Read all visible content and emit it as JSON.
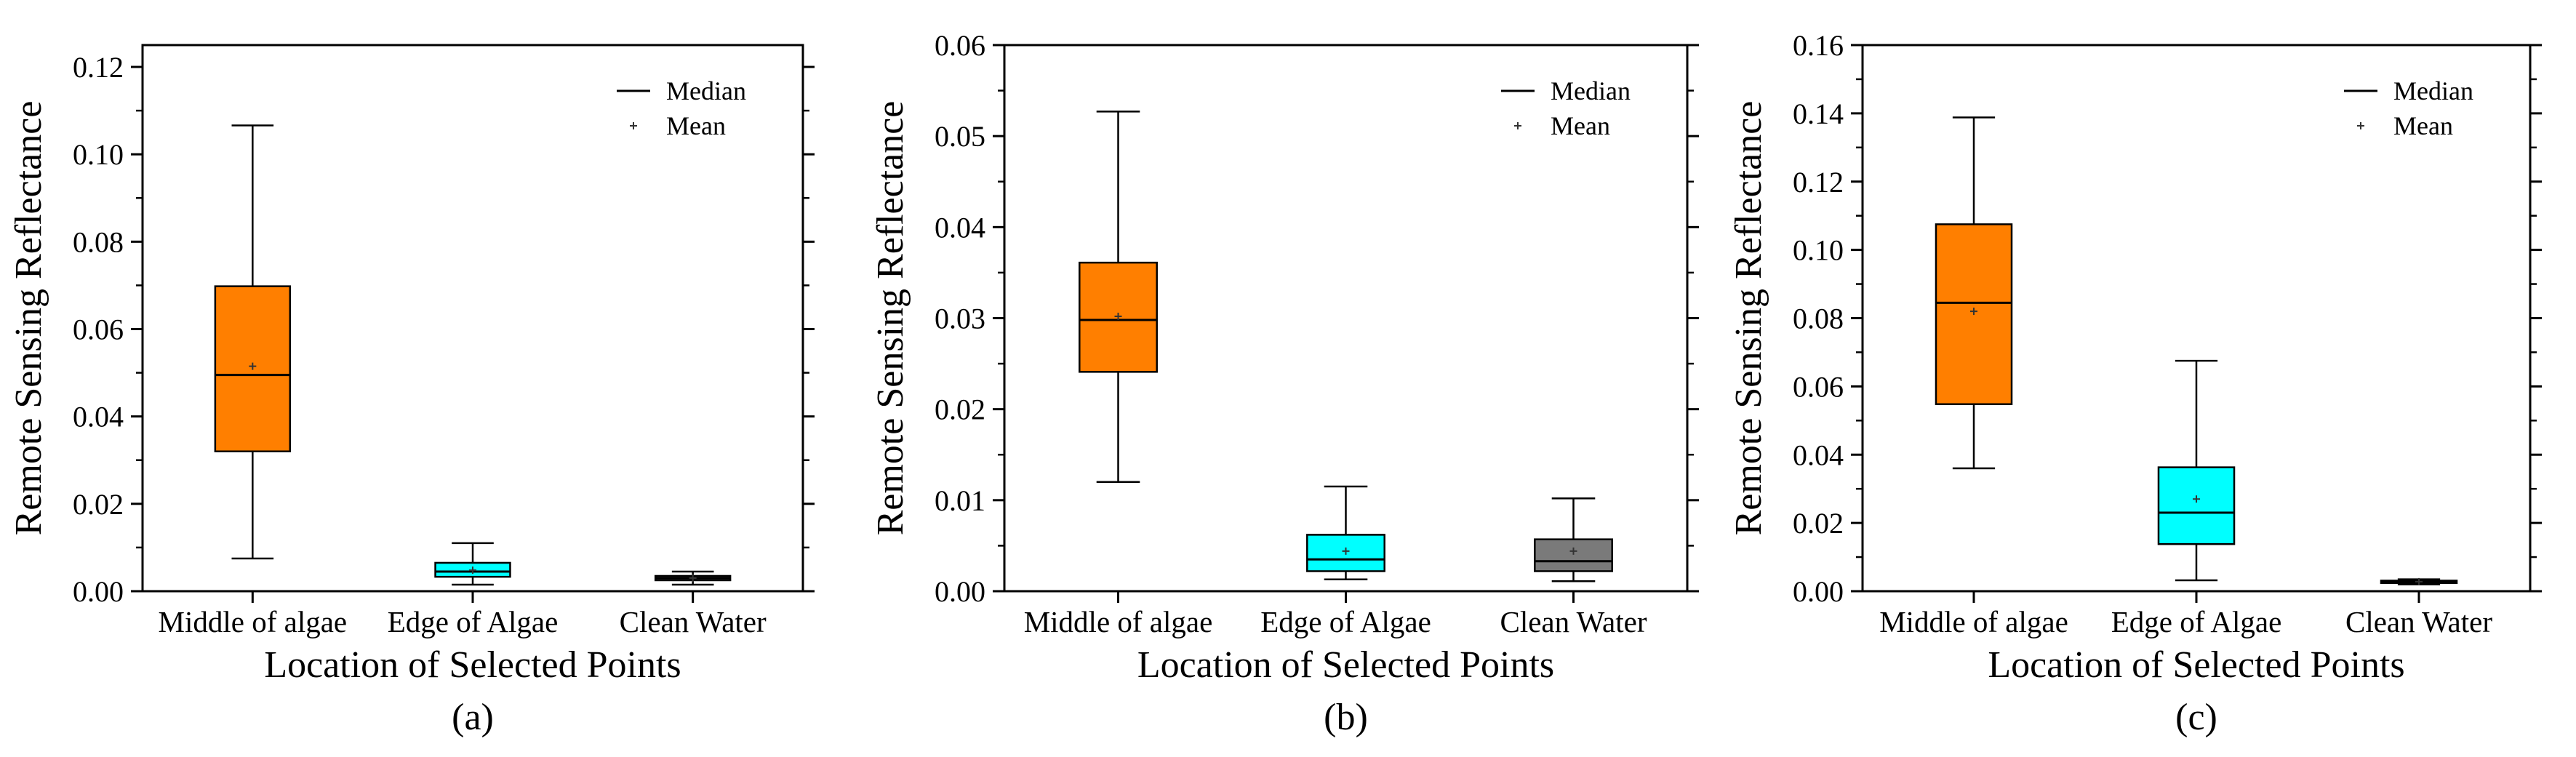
{
  "chart_data": [
    {
      "type": "box",
      "panel_label": "(a)",
      "xlabel": "Location of Selected Points",
      "ylabel": "Remote Sensing Reflectance",
      "ylim": [
        0,
        0.125
      ],
      "yticks": [
        0.0,
        0.02,
        0.04,
        0.06,
        0.08,
        0.1,
        0.12
      ],
      "tick_format_decimals": 2,
      "legend": {
        "position": "top-right",
        "median_label": "Median",
        "mean_label": "Mean"
      },
      "boxes": [
        {
          "category": "Middle of algae",
          "whisker_low": 0.0075,
          "q1": 0.032,
          "median": 0.0495,
          "q3": 0.0698,
          "whisker_high": 0.1066,
          "mean": 0.0515,
          "color": "#ff7f00"
        },
        {
          "category": "Edge of Algae",
          "whisker_low": 0.0015,
          "q1": 0.0033,
          "median": 0.0045,
          "q3": 0.0065,
          "whisker_high": 0.011,
          "mean": 0.0048,
          "color": "#00ffff"
        },
        {
          "category": "Clean Water",
          "whisker_low": 0.0015,
          "q1": 0.0025,
          "median": 0.003,
          "q3": 0.0035,
          "whisker_high": 0.0045,
          "mean": 0.003,
          "color": "#444444"
        }
      ]
    },
    {
      "type": "box",
      "panel_label": "(b)",
      "xlabel": "Location of Selected Points",
      "ylabel": "Remote Sensing Reflectance",
      "ylim": [
        0,
        0.06
      ],
      "yticks": [
        0.0,
        0.01,
        0.02,
        0.03,
        0.04,
        0.05,
        0.06
      ],
      "tick_format_decimals": 2,
      "legend": {
        "position": "top-right",
        "median_label": "Median",
        "mean_label": "Mean"
      },
      "boxes": [
        {
          "category": "Middle of algae",
          "whisker_low": 0.012,
          "q1": 0.0241,
          "median": 0.0298,
          "q3": 0.0361,
          "whisker_high": 0.0527,
          "mean": 0.0302,
          "color": "#ff7f00"
        },
        {
          "category": "Edge of Algae",
          "whisker_low": 0.0013,
          "q1": 0.0022,
          "median": 0.0035,
          "q3": 0.0062,
          "whisker_high": 0.0115,
          "mean": 0.0044,
          "color": "#00ffff"
        },
        {
          "category": "Clean Water",
          "whisker_low": 0.0011,
          "q1": 0.0022,
          "median": 0.0033,
          "q3": 0.0057,
          "whisker_high": 0.0102,
          "mean": 0.0044,
          "color": "#7a7a7a"
        }
      ]
    },
    {
      "type": "box",
      "panel_label": "(c)",
      "xlabel": "Location of Selected Points",
      "ylabel": "Remote Sensing Reflectance",
      "ylim": [
        0,
        0.16
      ],
      "yticks": [
        0.0,
        0.02,
        0.04,
        0.06,
        0.08,
        0.1,
        0.12,
        0.14,
        0.16
      ],
      "tick_format_decimals": 2,
      "legend": {
        "position": "top-right",
        "median_label": "Median",
        "mean_label": "Mean"
      },
      "boxes": [
        {
          "category": "Middle of algae",
          "whisker_low": 0.036,
          "q1": 0.0548,
          "median": 0.0845,
          "q3": 0.1075,
          "whisker_high": 0.1388,
          "mean": 0.082,
          "color": "#ff7f00"
        },
        {
          "category": "Edge of Algae",
          "whisker_low": 0.0032,
          "q1": 0.0138,
          "median": 0.023,
          "q3": 0.0363,
          "whisker_high": 0.0675,
          "mean": 0.027,
          "color": "#00ffff"
        },
        {
          "category": "Clean Water",
          "whisker_low": 0.002,
          "q1": 0.0024,
          "median": 0.0028,
          "q3": 0.0031,
          "whisker_high": 0.0035,
          "mean": 0.0028,
          "color": "#444444"
        }
      ]
    }
  ]
}
